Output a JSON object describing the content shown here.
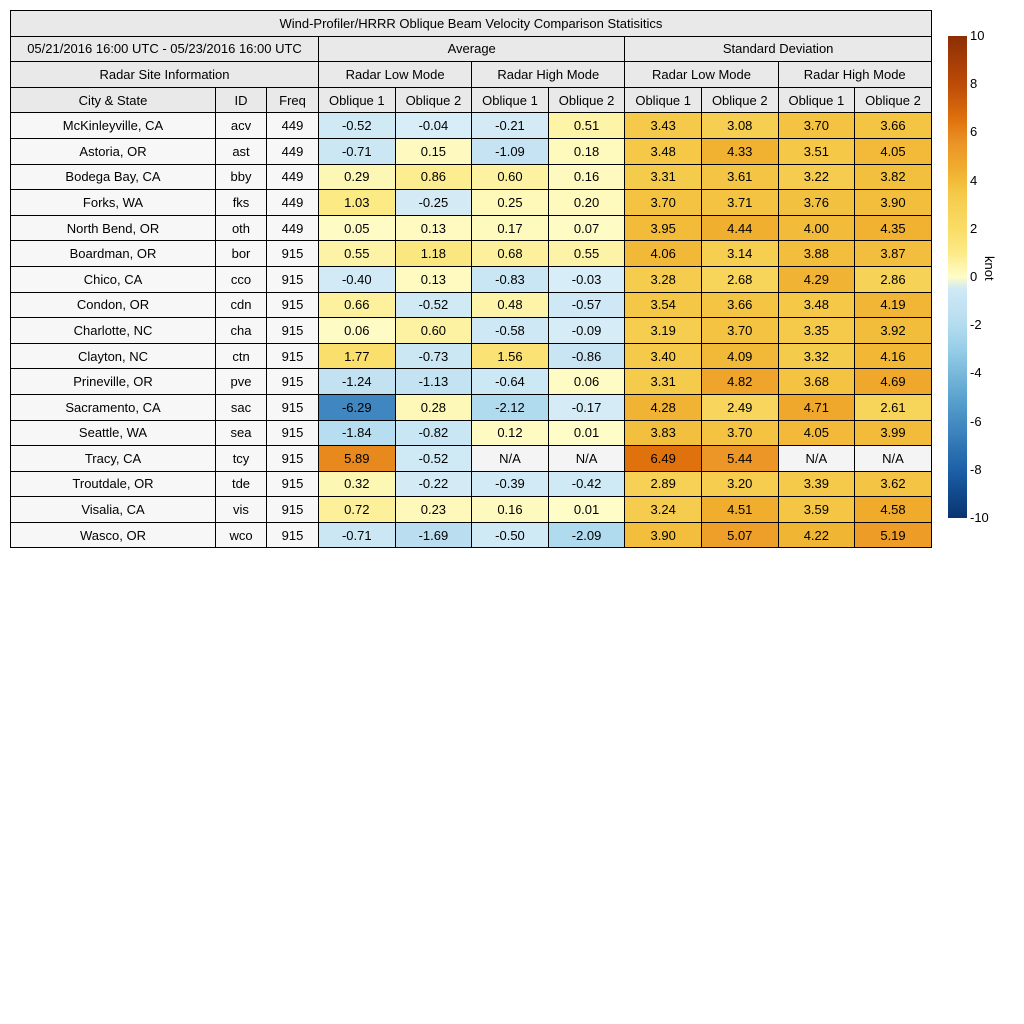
{
  "title": "Wind-Profiler/HRRR Oblique Beam Velocity Comparison Statisitics",
  "header": {
    "date_range": "05/21/2016 16:00 UTC - 05/23/2016 16:00 UTC",
    "group_average": "Average",
    "group_std": "Standard Deviation",
    "site_info": "Radar Site Information",
    "mode_labels": [
      "Radar Low Mode",
      "Radar High Mode",
      "Radar Low Mode",
      "Radar High Mode"
    ],
    "col_city": "City & State",
    "col_id": "ID",
    "col_freq": "Freq",
    "oblique_labels": [
      "Oblique 1",
      "Oblique 2",
      "Oblique 1",
      "Oblique 2",
      "Oblique 1",
      "Oblique 2",
      "Oblique 1",
      "Oblique 2"
    ]
  },
  "colorbar": {
    "label": "knot",
    "min": -10,
    "max": 10,
    "ticks": [
      "10",
      "8",
      "6",
      "4",
      "2",
      "0",
      "-2",
      "-4",
      "-6",
      "-8",
      "-10"
    ],
    "pos_ramp": [
      [
        0,
        "#fefcc8"
      ],
      [
        0.5,
        "#fdf4a9"
      ],
      [
        1,
        "#fcea86"
      ],
      [
        2,
        "#f9dc66"
      ],
      [
        3,
        "#f6d054"
      ],
      [
        3.5,
        "#f5c847"
      ],
      [
        4,
        "#f2bb39"
      ],
      [
        4.5,
        "#f0ad2e"
      ],
      [
        5,
        "#eea12a"
      ],
      [
        5.5,
        "#eb9526"
      ],
      [
        6,
        "#e6851b"
      ],
      [
        6.5,
        "#e0720e"
      ],
      [
        8,
        "#bc4b07"
      ],
      [
        10,
        "#8c2d04"
      ]
    ],
    "neg_ramp": [
      [
        0,
        "#d8edf7"
      ],
      [
        0.5,
        "#cfe9f5"
      ],
      [
        1,
        "#c6e4f3"
      ],
      [
        1.5,
        "#bee0f1"
      ],
      [
        2,
        "#b3dcef"
      ],
      [
        3,
        "#97cde7"
      ],
      [
        4,
        "#79b8da"
      ],
      [
        5,
        "#5ba3cf"
      ],
      [
        6,
        "#458cc3"
      ],
      [
        6.5,
        "#3c82bd"
      ],
      [
        7,
        "#2f76b5"
      ],
      [
        8,
        "#1d61a7"
      ],
      [
        9,
        "#11498c"
      ],
      [
        10,
        "#0a3470"
      ]
    ],
    "na_color": "#f4f4f4"
  },
  "chart_data": {
    "type": "heatmap",
    "title": "Wind-Profiler/HRRR Oblique Beam Velocity Comparison Statisitics",
    "date_range": "05/21/2016 16:00 UTC - 05/23/2016 16:00 UTC",
    "units": "knot",
    "value_range": [
      -10,
      10
    ],
    "column_groups": [
      "Average / Radar Low Mode",
      "Average / Radar High Mode",
      "Standard Deviation / Radar Low Mode",
      "Standard Deviation / Radar High Mode"
    ],
    "value_columns": [
      "avg_low_oblique1",
      "avg_low_oblique2",
      "avg_high_oblique1",
      "avg_high_oblique2",
      "std_low_oblique1",
      "std_low_oblique2",
      "std_high_oblique1",
      "std_high_oblique2"
    ],
    "rows": [
      {
        "city": "McKinleyville, CA",
        "id": "acv",
        "freq": "449",
        "values": [
          "-0.52",
          "-0.04",
          "-0.21",
          "0.51",
          "3.43",
          "3.08",
          "3.70",
          "3.66"
        ]
      },
      {
        "city": "Astoria, OR",
        "id": "ast",
        "freq": "449",
        "values": [
          "-0.71",
          "0.15",
          "-1.09",
          "0.18",
          "3.48",
          "4.33",
          "3.51",
          "4.05"
        ]
      },
      {
        "city": "Bodega Bay, CA",
        "id": "bby",
        "freq": "449",
        "values": [
          "0.29",
          "0.86",
          "0.60",
          "0.16",
          "3.31",
          "3.61",
          "3.22",
          "3.82"
        ]
      },
      {
        "city": "Forks, WA",
        "id": "fks",
        "freq": "449",
        "values": [
          "1.03",
          "-0.25",
          "0.25",
          "0.20",
          "3.70",
          "3.71",
          "3.76",
          "3.90"
        ]
      },
      {
        "city": "North Bend, OR",
        "id": "oth",
        "freq": "449",
        "values": [
          "0.05",
          "0.13",
          "0.17",
          "0.07",
          "3.95",
          "4.44",
          "4.00",
          "4.35"
        ]
      },
      {
        "city": "Boardman, OR",
        "id": "bor",
        "freq": "915",
        "values": [
          "0.55",
          "1.18",
          "0.68",
          "0.55",
          "4.06",
          "3.14",
          "3.88",
          "3.87"
        ]
      },
      {
        "city": "Chico, CA",
        "id": "cco",
        "freq": "915",
        "values": [
          "-0.40",
          "0.13",
          "-0.83",
          "-0.03",
          "3.28",
          "2.68",
          "4.29",
          "2.86"
        ]
      },
      {
        "city": "Condon, OR",
        "id": "cdn",
        "freq": "915",
        "values": [
          "0.66",
          "-0.52",
          "0.48",
          "-0.57",
          "3.54",
          "3.66",
          "3.48",
          "4.19"
        ]
      },
      {
        "city": "Charlotte, NC",
        "id": "cha",
        "freq": "915",
        "values": [
          "0.06",
          "0.60",
          "-0.58",
          "-0.09",
          "3.19",
          "3.70",
          "3.35",
          "3.92"
        ]
      },
      {
        "city": "Clayton, NC",
        "id": "ctn",
        "freq": "915",
        "values": [
          "1.77",
          "-0.73",
          "1.56",
          "-0.86",
          "3.40",
          "4.09",
          "3.32",
          "4.16"
        ]
      },
      {
        "city": "Prineville, OR",
        "id": "pve",
        "freq": "915",
        "values": [
          "-1.24",
          "-1.13",
          "-0.64",
          "0.06",
          "3.31",
          "4.82",
          "3.68",
          "4.69"
        ]
      },
      {
        "city": "Sacramento, CA",
        "id": "sac",
        "freq": "915",
        "values": [
          "-6.29",
          "0.28",
          "-2.12",
          "-0.17",
          "4.28",
          "2.49",
          "4.71",
          "2.61"
        ]
      },
      {
        "city": "Seattle, WA",
        "id": "sea",
        "freq": "915",
        "values": [
          "-1.84",
          "-0.82",
          "0.12",
          "0.01",
          "3.83",
          "3.70",
          "4.05",
          "3.99"
        ]
      },
      {
        "city": "Tracy, CA",
        "id": "tcy",
        "freq": "915",
        "values": [
          "5.89",
          "-0.52",
          "N/A",
          "N/A",
          "6.49",
          "5.44",
          "N/A",
          "N/A"
        ]
      },
      {
        "city": "Troutdale, OR",
        "id": "tde",
        "freq": "915",
        "values": [
          "0.32",
          "-0.22",
          "-0.39",
          "-0.42",
          "2.89",
          "3.20",
          "3.39",
          "3.62"
        ]
      },
      {
        "city": "Visalia, CA",
        "id": "vis",
        "freq": "915",
        "values": [
          "0.72",
          "0.23",
          "0.16",
          "0.01",
          "3.24",
          "4.51",
          "3.59",
          "4.58"
        ]
      },
      {
        "city": "Wasco, OR",
        "id": "wco",
        "freq": "915",
        "values": [
          "-0.71",
          "-1.69",
          "-0.50",
          "-2.09",
          "3.90",
          "5.07",
          "4.22",
          "5.19"
        ]
      }
    ],
    "colorbar": {
      "label": "knot",
      "min": -10,
      "max": 10,
      "tick_step": 2,
      "legend_position": "right"
    }
  }
}
